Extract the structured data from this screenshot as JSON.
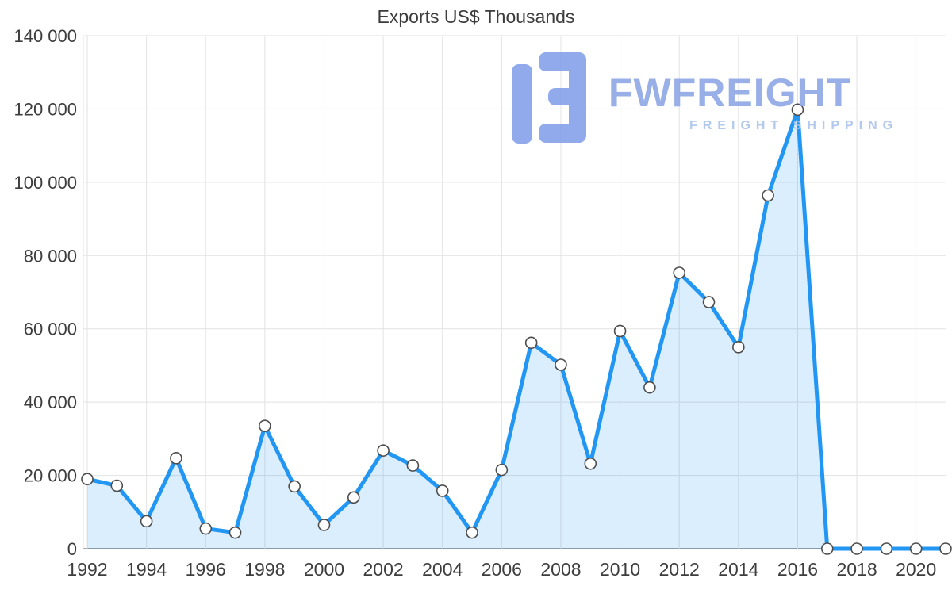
{
  "chart_data": {
    "type": "area",
    "title": "Exports US$ Thousands",
    "x": [
      1992,
      1993,
      1994,
      1995,
      1996,
      1997,
      1998,
      1999,
      2000,
      2001,
      2002,
      2003,
      2004,
      2005,
      2006,
      2007,
      2008,
      2009,
      2010,
      2011,
      2012,
      2013,
      2014,
      2015,
      2016,
      2017,
      2018,
      2019,
      2020,
      2021
    ],
    "series": [
      {
        "name": "Exports US$ Thousands",
        "values": [
          19000,
          17200,
          7500,
          24700,
          5500,
          4400,
          33500,
          17000,
          6500,
          14000,
          26800,
          22700,
          15800,
          4400,
          21500,
          56200,
          50200,
          23200,
          59400,
          44000,
          75300,
          67300,
          55000,
          96400,
          119800,
          0,
          0,
          0,
          0,
          0
        ]
      }
    ],
    "ylim": [
      0,
      140000
    ],
    "yticks": [
      {
        "value": 0,
        "label": "0"
      },
      {
        "value": 20000,
        "label": "20 000"
      },
      {
        "value": 40000,
        "label": "40 000"
      },
      {
        "value": 60000,
        "label": "60 000"
      },
      {
        "value": 80000,
        "label": "80 000"
      },
      {
        "value": 100000,
        "label": "100 000"
      },
      {
        "value": 120000,
        "label": "120 000"
      },
      {
        "value": 140000,
        "label": "140 000"
      }
    ],
    "xticks": [
      {
        "value": 1992,
        "label": "1992"
      },
      {
        "value": 1994,
        "label": "1994"
      },
      {
        "value": 1996,
        "label": "1996"
      },
      {
        "value": 1998,
        "label": "1998"
      },
      {
        "value": 2000,
        "label": "2000"
      },
      {
        "value": 2002,
        "label": "2002"
      },
      {
        "value": 2004,
        "label": "2004"
      },
      {
        "value": 2006,
        "label": "2006"
      },
      {
        "value": 2008,
        "label": "2008"
      },
      {
        "value": 2010,
        "label": "2010"
      },
      {
        "value": 2012,
        "label": "2012"
      },
      {
        "value": 2014,
        "label": "2014"
      },
      {
        "value": 2016,
        "label": "2016"
      },
      {
        "value": 2018,
        "label": "2018"
      },
      {
        "value": 2020,
        "label": "2020"
      }
    ],
    "grid": true,
    "legend_position": "none",
    "line_color": "#2196f3",
    "area_color": "#2196f3",
    "area_opacity": 0.16,
    "marker_fill": "#ffffff",
    "marker_stroke": "#4d4d4d",
    "gridline_color": "#e2e2e2",
    "axis_line_color": "#9e9e9e",
    "label_color": "#3d3d3d"
  },
  "watermark": {
    "brand": "FWFREIGHT",
    "tagline": "FREIGHT SHIPPING",
    "logo_color": "#7d9ce8",
    "brand_color": "#8ea7e5",
    "tagline_color": "#aac3ec"
  }
}
